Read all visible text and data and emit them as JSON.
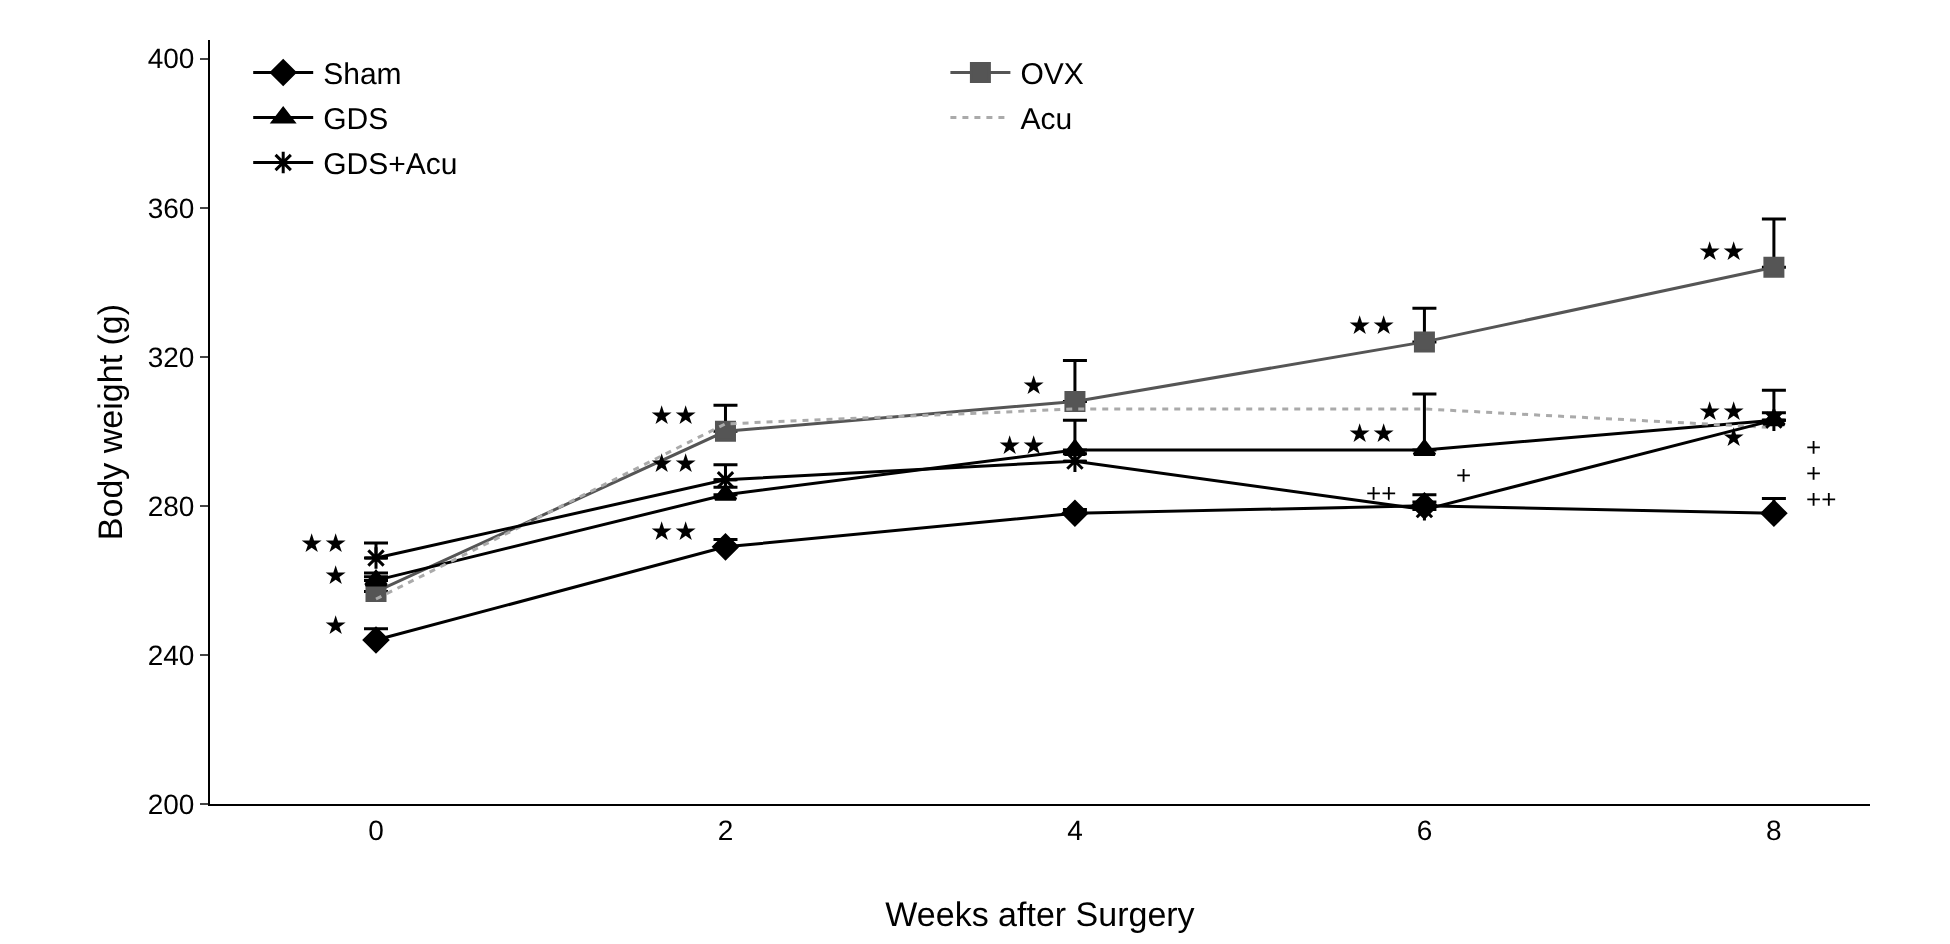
{
  "chart_data": {
    "type": "line",
    "xlabel": "Weeks after Surgery",
    "ylabel": "Body weight (g)",
    "x": [
      0,
      2,
      4,
      6,
      8
    ],
    "xlim": [
      -0.95,
      8.55
    ],
    "xticks": [
      0,
      2,
      4,
      6,
      8
    ],
    "ylim": [
      200,
      405
    ],
    "yticks": [
      200,
      240,
      280,
      320,
      360,
      400
    ],
    "grid": false,
    "legend": "top left",
    "series": [
      {
        "name": "Sham",
        "color": "#000000",
        "marker": "diamond",
        "line_style": "solid",
        "values": [
          244,
          269,
          278,
          280,
          278
        ],
        "errors": [
          [
            244,
            247
          ],
          [
            269,
            271
          ],
          [
            278,
            279
          ],
          [
            280,
            283
          ],
          [
            278,
            282
          ]
        ]
      },
      {
        "name": "OVX",
        "color": "#555555",
        "marker": "square",
        "line_style": "solid",
        "values": [
          257,
          300,
          308,
          324,
          344
        ],
        "errors": [
          [
            257,
            261
          ],
          [
            300,
            307
          ],
          [
            308,
            319
          ],
          [
            324,
            333
          ],
          [
            344,
            357
          ]
        ]
      },
      {
        "name": "GDS",
        "color": "#000000",
        "marker": "triangle",
        "line_style": "solid",
        "values": [
          260,
          283,
          295,
          295,
          303
        ],
        "errors": [
          [
            260,
            262
          ],
          [
            283,
            285
          ],
          [
            295,
            303
          ],
          [
            295,
            310
          ],
          [
            303,
            311
          ]
        ]
      },
      {
        "name": "Acu",
        "color": "#aaaaaa",
        "marker": "none",
        "line_style": "dotted",
        "values": [
          255,
          302,
          306,
          306,
          301
        ]
      },
      {
        "name": "GDS+Acu",
        "color": "#000000",
        "marker": "cross",
        "line_style": "solid",
        "values": [
          266,
          287,
          292,
          279,
          303
        ],
        "errors": [
          [
            266,
            270
          ],
          [
            287,
            291
          ],
          [
            292,
            294
          ],
          [
            279,
            281
          ],
          [
            303,
            305
          ]
        ]
      }
    ],
    "annotations": [
      {
        "text": "★★",
        "x": 0,
        "y": 266
      },
      {
        "text": "★",
        "x": 0,
        "y": 257
      },
      {
        "text": "★",
        "x": 0,
        "y": 244
      },
      {
        "text": "★★",
        "x": 2,
        "y": 300
      },
      {
        "text": "★★",
        "x": 2,
        "y": 287
      },
      {
        "text": "★★",
        "x": 2,
        "y": 269
      },
      {
        "text": "★",
        "x": 4,
        "y": 308
      },
      {
        "text": "★★",
        "x": 4,
        "y": 292
      },
      {
        "text": "★★",
        "x": 6,
        "y": 324
      },
      {
        "text": "★★",
        "x": 6,
        "y": 295
      },
      {
        "text": "+",
        "x": 6,
        "y": 295
      },
      {
        "text": "++",
        "x": 6,
        "y": 279
      },
      {
        "text": "★★",
        "x": 8,
        "y": 344
      },
      {
        "text": "★★",
        "x": 8,
        "y": 301
      },
      {
        "text": "★",
        "x": 8,
        "y": 303
      },
      {
        "text": "+",
        "x": 8,
        "y": 303
      },
      {
        "text": "+",
        "x": 8,
        "y": 301
      },
      {
        "text": "++",
        "x": 8,
        "y": 303
      }
    ]
  }
}
